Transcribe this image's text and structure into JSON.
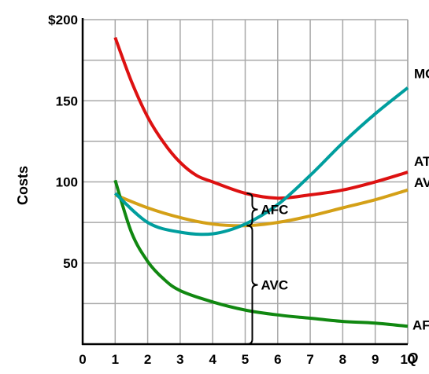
{
  "chart_data": {
    "type": "line",
    "xlabel": "Q",
    "ylabel": "Costs",
    "xlim": [
      0,
      10
    ],
    "ylim": [
      0,
      200
    ],
    "x_ticks": [
      "0",
      "1",
      "2",
      "3",
      "4",
      "5",
      "6",
      "7",
      "8",
      "9",
      "10"
    ],
    "y_ticks": [
      {
        "value": 200,
        "label": "$200"
      },
      {
        "value": 150,
        "label": "150"
      },
      {
        "value": 100,
        "label": "100"
      },
      {
        "value": 50,
        "label": "50"
      }
    ],
    "grid": true,
    "series": [
      {
        "name": "MC",
        "color": "#009e9e",
        "x": [
          1,
          2,
          3,
          4,
          5,
          6,
          7,
          8,
          9,
          10
        ],
        "y": [
          93,
          75,
          69,
          68,
          74,
          86,
          104,
          124,
          142,
          158
        ]
      },
      {
        "name": "ATC",
        "color": "#dd1111",
        "x": [
          1,
          1.5,
          2,
          2.5,
          3,
          3.5,
          4,
          5,
          6,
          7,
          8,
          9,
          10
        ],
        "y": [
          189,
          162,
          140,
          124,
          112,
          104,
          100,
          93,
          90,
          92,
          95,
          100,
          106
        ]
      },
      {
        "name": "AVC",
        "color": "#d4a017",
        "x": [
          1,
          2,
          3,
          4,
          5,
          6,
          7,
          8,
          9,
          10
        ],
        "y": [
          92,
          84,
          78,
          74,
          73,
          75,
          79,
          84,
          89,
          95
        ]
      },
      {
        "name": "AFC",
        "color": "#118811",
        "x": [
          1,
          1.5,
          2,
          2.5,
          3,
          4,
          5,
          6,
          7,
          8,
          9,
          10
        ],
        "y": [
          101,
          69,
          51,
          40,
          33,
          26,
          21,
          18,
          16,
          14,
          13,
          11
        ]
      }
    ],
    "annotations": [
      {
        "text": "AFC",
        "brace_from": 73,
        "brace_to": 93,
        "x": 5
      },
      {
        "text": "AVC",
        "brace_from": 0,
        "brace_to": 73,
        "x": 5
      }
    ]
  }
}
